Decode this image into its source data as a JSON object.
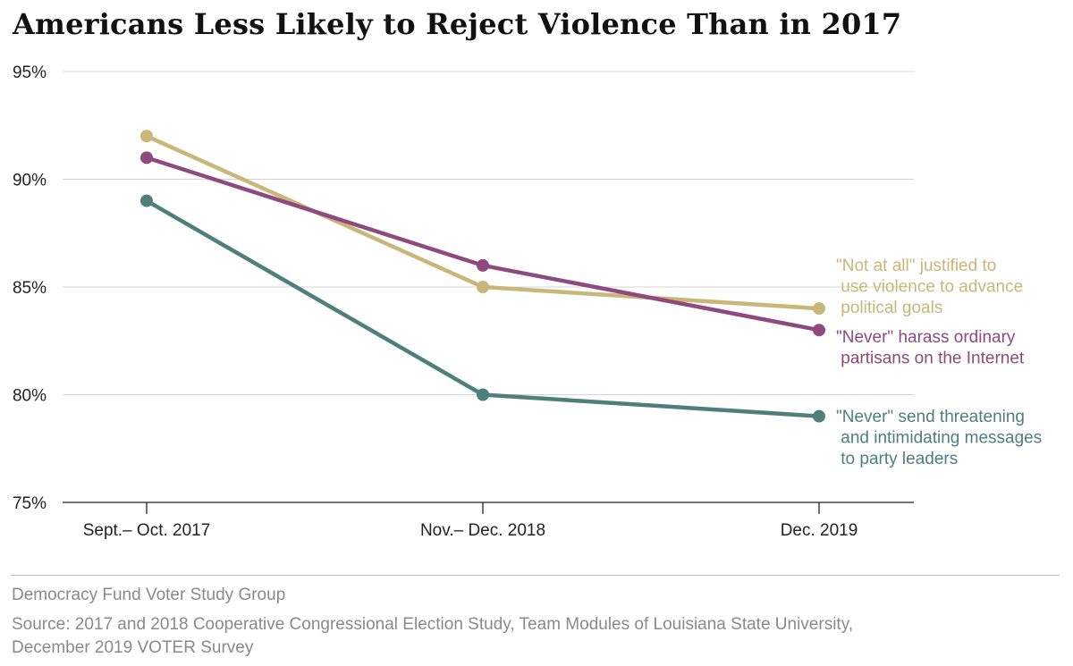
{
  "title": "Americans Less Likely to Reject Violence Than in 2017",
  "credit": "Democracy Fund Voter Study Group",
  "source": "Source: 2017 and 2018 Cooperative Congressional Election Study, Team Modules of Louisiana State University, December 2019 VOTER Survey",
  "chart_data": {
    "type": "line",
    "title": "Americans Less Likely to Reject Violence Than in 2017",
    "categories": [
      "Sept.– Oct. 2017",
      "Nov.– Dec. 2018",
      "Dec. 2019"
    ],
    "ylim": [
      75,
      95
    ],
    "yticks": [
      75,
      80,
      85,
      90,
      95
    ],
    "ytick_labels": [
      "75%",
      "80%",
      "85%",
      "90%",
      "95%"
    ],
    "grid": true,
    "legend": "direct labels at right end of lines",
    "series": [
      {
        "name": "\"Not at all\" justified to use violence to advance political goals",
        "label_lines": [
          "\"Not at all\" justified to",
          " use violence to advance",
          " political goals"
        ],
        "color": "#C9B679",
        "values": [
          92,
          85,
          84
        ]
      },
      {
        "name": "\"Never\" harass ordinary partisans on the Internet",
        "label_lines": [
          "\"Never\" harass ordinary",
          " partisans on the Internet"
        ],
        "color": "#8E4A7E",
        "values": [
          91,
          86,
          83
        ]
      },
      {
        "name": "\"Never\" send threatening and intimidating messages to party leaders",
        "label_lines": [
          "\"Never\" send threatening",
          " and intimidating messages",
          " to party leaders"
        ],
        "color": "#4E7F7C",
        "values": [
          89,
          80,
          79
        ]
      }
    ]
  }
}
